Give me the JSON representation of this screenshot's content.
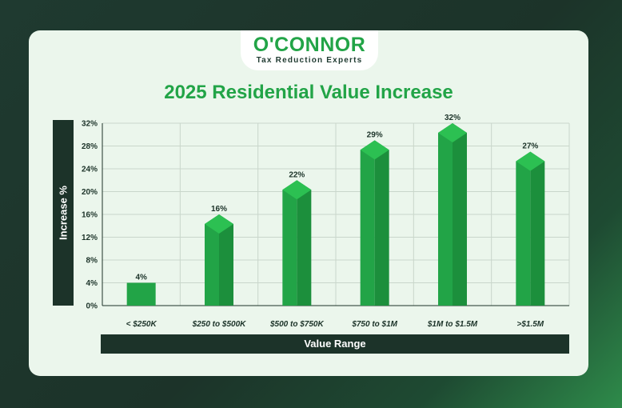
{
  "logo": {
    "name": "O'CONNOR",
    "tagline": "Tax Reduction Experts"
  },
  "chart_data": {
    "type": "bar",
    "title": "2025 Residential Value Increase",
    "xlabel": "Value Range",
    "ylabel": "Increase %",
    "categories": [
      "< $250K",
      "$250 to $500K",
      "$500 to $750K",
      "$750 to $1M",
      "$1M to $1.5M",
      ">$1.5M"
    ],
    "values": [
      4,
      16,
      22,
      29,
      32,
      27
    ],
    "data_labels": [
      "4%",
      "16%",
      "22%",
      "29%",
      "32%",
      "27%"
    ],
    "ylim": [
      0,
      32
    ],
    "yticks": [
      0,
      4,
      8,
      12,
      16,
      20,
      24,
      28,
      32
    ],
    "ytick_labels": [
      "0%",
      "4%",
      "8%",
      "12%",
      "16%",
      "20%",
      "24%",
      "28%",
      "32%"
    ],
    "grid": true,
    "colors": {
      "bar": "#22a447",
      "bar_dark": "#1c8f3c",
      "bar_top": "#2cc052",
      "axis": "#1c3329"
    }
  }
}
